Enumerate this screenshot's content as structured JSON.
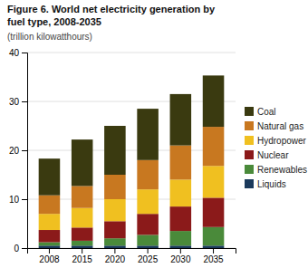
{
  "chart_data": {
    "type": "bar",
    "stacked": true,
    "title": [
      "Figure 6. World net electricity generation by",
      "fuel type, 2008-2035"
    ],
    "subtitle": "(trillion kilowatthours)",
    "categories": [
      "2008",
      "2015",
      "2020",
      "2025",
      "2030",
      "2035"
    ],
    "series": [
      {
        "name": "Liquids",
        "color": "#1b3a5c",
        "values": [
          0.5,
          0.5,
          0.5,
          0.5,
          0.5,
          0.5
        ]
      },
      {
        "name": "Renewables",
        "color": "#4a8a3a",
        "values": [
          0.7,
          1.0,
          1.5,
          2.2,
          3.0,
          3.8
        ]
      },
      {
        "name": "Nuclear",
        "color": "#8b1a1a",
        "values": [
          2.5,
          2.7,
          3.5,
          4.3,
          5.0,
          6.0
        ]
      },
      {
        "name": "Hydropower",
        "color": "#f0c020",
        "values": [
          3.3,
          4.0,
          4.5,
          5.0,
          5.5,
          6.5
        ]
      },
      {
        "name": "Natural gas",
        "color": "#c87820",
        "values": [
          3.8,
          4.5,
          5.0,
          6.0,
          7.0,
          8.0
        ]
      },
      {
        "name": "Coal",
        "color": "#3a3a10",
        "values": [
          7.5,
          9.5,
          10.0,
          10.5,
          10.5,
          10.5
        ]
      }
    ],
    "ylim": [
      0,
      40
    ],
    "yticks": [
      0,
      10,
      20,
      30,
      40
    ],
    "grid": true,
    "legend": "right"
  }
}
